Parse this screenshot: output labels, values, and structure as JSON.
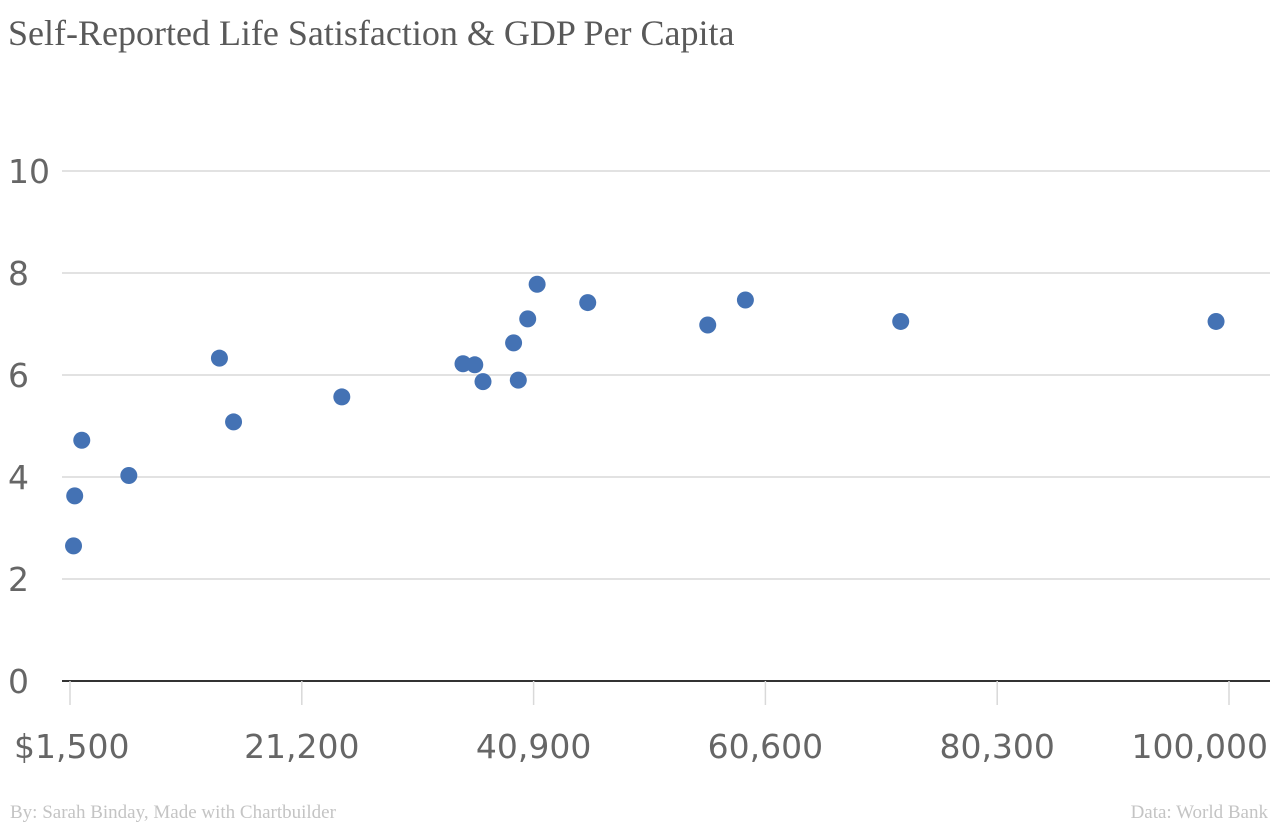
{
  "chart_data": {
    "type": "scatter",
    "title": "Self-Reported Life Satisfaction & GDP Per Capita",
    "xlabel": "",
    "ylabel": "",
    "xlim": [
      1500,
      100000
    ],
    "ylim": [
      0,
      10
    ],
    "x_ticks": [
      1500,
      21200,
      40900,
      60600,
      80300,
      100000
    ],
    "x_tick_labels": [
      "$1,500",
      "21,200",
      "40,900",
      "60,600",
      "80,300",
      "100,000"
    ],
    "y_ticks": [
      0,
      2,
      4,
      6,
      8,
      10
    ],
    "y_tick_labels": [
      "0",
      "2",
      "4",
      "6",
      "8",
      "10"
    ],
    "grid": true,
    "point_color": "#4472b4",
    "points": [
      {
        "x": 1800,
        "y": 2.65
      },
      {
        "x": 1900,
        "y": 3.63
      },
      {
        "x": 2500,
        "y": 4.72
      },
      {
        "x": 6500,
        "y": 4.03
      },
      {
        "x": 14200,
        "y": 6.33
      },
      {
        "x": 15400,
        "y": 5.08
      },
      {
        "x": 24600,
        "y": 5.57
      },
      {
        "x": 34900,
        "y": 6.22
      },
      {
        "x": 35900,
        "y": 6.2
      },
      {
        "x": 36600,
        "y": 5.87
      },
      {
        "x": 39200,
        "y": 6.63
      },
      {
        "x": 39600,
        "y": 5.9
      },
      {
        "x": 40400,
        "y": 7.1
      },
      {
        "x": 41200,
        "y": 7.78
      },
      {
        "x": 45500,
        "y": 7.42
      },
      {
        "x": 55700,
        "y": 6.98
      },
      {
        "x": 58900,
        "y": 7.47
      },
      {
        "x": 72100,
        "y": 7.05
      },
      {
        "x": 98900,
        "y": 7.05
      }
    ]
  },
  "footer": {
    "credit": "By: Sarah Binday, Made with Chartbuilder",
    "source": "Data: World Bank"
  }
}
